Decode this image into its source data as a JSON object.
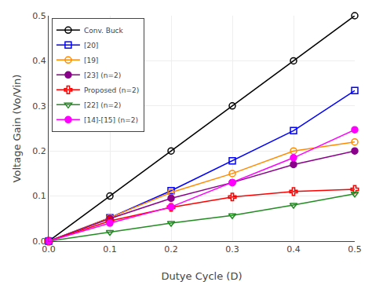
{
  "chart_data": {
    "type": "line",
    "x": [
      0,
      0.1,
      0.2,
      0.3,
      0.4,
      0.5
    ],
    "series": [
      {
        "name": "Conv. Buck",
        "color": "#000000",
        "marker": "circle-open",
        "values": [
          0,
          0.1,
          0.2,
          0.3,
          0.4,
          0.5
        ]
      },
      {
        "name": "[20]",
        "color": "#0000FF",
        "marker": "square-open",
        "values": [
          0,
          0.052,
          0.112,
          0.178,
          0.245,
          0.334
        ]
      },
      {
        "name": "[19]",
        "color": "#FF8C00",
        "marker": "circle-open",
        "values": [
          0,
          0.052,
          0.108,
          0.15,
          0.2,
          0.22
        ]
      },
      {
        "name": "[23] (n=2)",
        "color": "#8B008B",
        "marker": "circle",
        "values": [
          0,
          0.05,
          0.095,
          0.13,
          0.17,
          0.2
        ]
      },
      {
        "name": "Proposed (n=2)",
        "color": "#FF0000",
        "marker": "cross-open",
        "values": [
          0,
          0.045,
          0.075,
          0.098,
          0.11,
          0.115
        ]
      },
      {
        "name": "[22] (n=2)",
        "color": "#228B22",
        "marker": "triangle-down-open",
        "values": [
          0,
          0.02,
          0.04,
          0.057,
          0.08,
          0.105
        ]
      },
      {
        "name": "[14]-[15] (n=2)",
        "color": "#FF00FF",
        "marker": "circle",
        "values": [
          0,
          0.04,
          0.076,
          0.13,
          0.185,
          0.247
        ]
      }
    ],
    "xlabel": "Dutye Cycle (D)",
    "ylabel": "Voltage Gain (Vo/Vin)",
    "xlim": [
      0,
      0.5
    ],
    "ylim": [
      0,
      0.5
    ],
    "xticks": [
      {
        "value": 0,
        "label": "0.0"
      },
      0.1,
      0.2,
      0.3,
      0.4,
      0.5
    ],
    "yticks": [
      {
        "value": 0,
        "label": "0.0"
      },
      0.1,
      0.2,
      0.3,
      0.4,
      0.5
    ],
    "grid": true,
    "legend": "upper left"
  }
}
